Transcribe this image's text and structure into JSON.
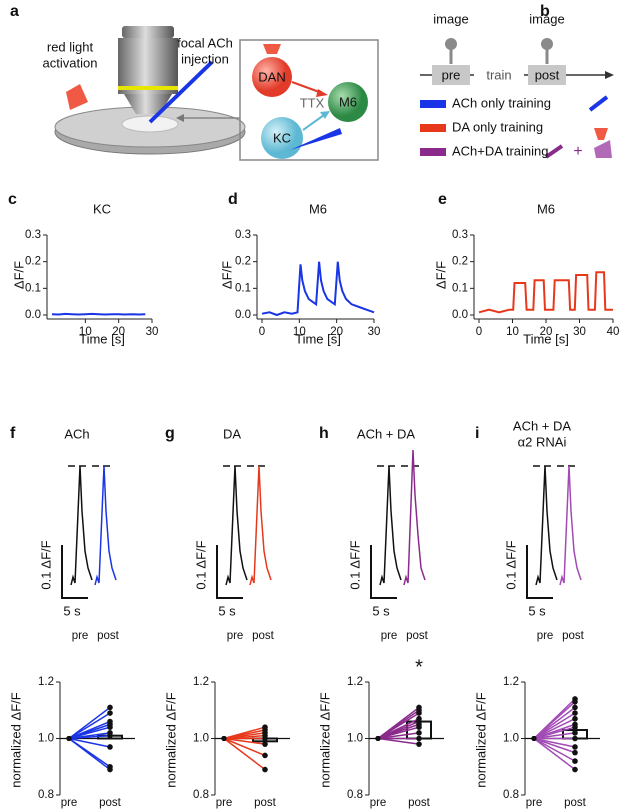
{
  "panel_a": {
    "letter": "a",
    "red_light": [
      "red light",
      "activation"
    ],
    "injection": [
      "focal ACh",
      "injection"
    ],
    "nodes": {
      "dan": "DAN",
      "m6": "M6",
      "kc": "KC"
    },
    "ttx": "TTX"
  },
  "panel_b": {
    "letter": "b",
    "image_labels": [
      "image",
      "image"
    ],
    "timeline": [
      "pre",
      "train",
      "post"
    ],
    "legend": [
      {
        "label": "ACh only training",
        "color": "#1a35e6"
      },
      {
        "label": "DA only training",
        "color": "#e8381c"
      },
      {
        "label": "ACh+DA  training",
        "color": "#8a2b8c"
      }
    ],
    "plus": "+"
  },
  "chart_data": [
    {
      "type": "line",
      "letter": "c",
      "title": "KC",
      "x_label": "Time [s]",
      "y_label": "ΔF/F",
      "x": [
        0,
        2,
        4,
        6,
        8,
        10,
        12,
        14,
        16,
        18,
        20,
        22,
        24,
        26,
        28
      ],
      "series": [
        {
          "color": "#1a35e6",
          "values": [
            0.003,
            0.002,
            0.004,
            0.003,
            0.002,
            0.003,
            0.004,
            0.003,
            0.002,
            0.003,
            0.003,
            0.002,
            0.003,
            0.002,
            0.003
          ]
        }
      ],
      "xlim": [
        0,
        30
      ],
      "ylim": [
        0,
        0.3
      ],
      "xticks": [
        10,
        20,
        30
      ],
      "yticks": [
        {
          "value": 0,
          "label": "0.0"
        },
        {
          "value": 0.1,
          "label": "0.1"
        },
        {
          "value": 0.2,
          "label": "0.2"
        },
        {
          "value": 0.3,
          "label": "0.3"
        }
      ]
    },
    {
      "type": "line",
      "letter": "d",
      "title": "M6",
      "x_label": "Time [s]",
      "y_label": "ΔF/F",
      "x": [
        0,
        2,
        4,
        6,
        8,
        9.5,
        10.3,
        10.8,
        11.5,
        12.5,
        13.5,
        14.5,
        15.3,
        15.8,
        16.5,
        17.5,
        18.5,
        19.5,
        20.3,
        20.8,
        21.5,
        22.5,
        24,
        26,
        28,
        30
      ],
      "series": [
        {
          "color": "#1a35e6",
          "values": [
            0.005,
            0.01,
            0.0,
            0.01,
            0.005,
            0.01,
            0.19,
            0.13,
            0.09,
            0.06,
            0.05,
            0.04,
            0.2,
            0.13,
            0.09,
            0.06,
            0.05,
            0.04,
            0.2,
            0.13,
            0.09,
            0.06,
            0.04,
            0.03,
            0.02,
            0.01
          ]
        }
      ],
      "xlim": [
        0,
        30
      ],
      "ylim": [
        0,
        0.3
      ],
      "xticks": [
        0,
        10,
        20,
        30
      ],
      "yticks": [
        {
          "value": 0,
          "label": "0.0"
        },
        {
          "value": 0.1,
          "label": "0.1"
        },
        {
          "value": 0.2,
          "label": "0.2"
        },
        {
          "value": 0.3,
          "label": "0.3"
        }
      ]
    },
    {
      "type": "line",
      "letter": "e",
      "title": "M6",
      "x_label": "Time [s]",
      "y_label": "ΔF/F",
      "x": [
        0,
        3,
        6,
        9,
        10.2,
        10.6,
        13.8,
        14.2,
        16.2,
        16.6,
        19.3,
        19.7,
        22.2,
        22.6,
        26.8,
        27.2,
        28.6,
        29.0,
        32.3,
        32.7,
        34.6,
        35.0,
        37.3,
        37.7,
        40
      ],
      "series": [
        {
          "color": "#e8381c",
          "values": [
            0.01,
            0.02,
            0.01,
            0.02,
            0.02,
            0.12,
            0.12,
            0.02,
            0.02,
            0.13,
            0.13,
            0.02,
            0.02,
            0.13,
            0.13,
            0.02,
            0.02,
            0.15,
            0.15,
            0.02,
            0.02,
            0.16,
            0.16,
            0.02,
            0.02
          ]
        }
      ],
      "xlim": [
        0,
        40
      ],
      "ylim": [
        0,
        0.3
      ],
      "xticks": [
        0,
        10,
        20,
        30,
        40
      ],
      "yticks": [
        {
          "value": 0,
          "label": "0.0"
        },
        {
          "value": 0.1,
          "label": "0.1"
        },
        {
          "value": 0.2,
          "label": "0.2"
        },
        {
          "value": 0.3,
          "label": "0.3"
        }
      ]
    },
    {
      "type": "paired",
      "letter": "f",
      "title": "ACh",
      "scale_y": "0.1 ΔF/F",
      "scale_x": "5 s",
      "trace_labels": [
        "pre",
        "post"
      ],
      "y_label": "normalized ΔF/F",
      "categories": [
        "pre",
        "post"
      ],
      "color": "#1a35e6",
      "reference": 1.0,
      "pre": [
        1.0,
        1.0,
        1.0,
        1.0,
        1.0,
        1.0,
        1.0,
        1.0,
        1.0,
        1.0
      ],
      "post": [
        1.11,
        1.09,
        1.06,
        1.05,
        1.04,
        1.02,
        1.01,
        0.97,
        0.9,
        0.89
      ],
      "mean": 1.01,
      "ylim": [
        0.8,
        1.2
      ],
      "yticks": [
        {
          "value": 0.8,
          "label": "0.8"
        },
        {
          "value": 1.0,
          "label": "1.0"
        },
        {
          "value": 1.2,
          "label": "1.2"
        }
      ]
    },
    {
      "type": "paired",
      "letter": "g",
      "title": "DA",
      "scale_y": "0.1 ΔF/F",
      "scale_x": "5 s",
      "trace_labels": [
        "pre",
        "post"
      ],
      "y_label": "normalized ΔF/F",
      "categories": [
        "pre",
        "post"
      ],
      "color": "#e8381c",
      "reference": 1.0,
      "pre": [
        1.0,
        1.0,
        1.0,
        1.0,
        1.0,
        1.0,
        1.0,
        1.0
      ],
      "post": [
        1.04,
        1.03,
        1.02,
        1.01,
        1.0,
        0.98,
        0.94,
        0.89
      ],
      "mean": 0.99,
      "ylim": [
        0.8,
        1.2
      ],
      "yticks": [
        {
          "value": 0.8,
          "label": "0.8"
        },
        {
          "value": 1.0,
          "label": "1.0"
        },
        {
          "value": 1.2,
          "label": "1.2"
        }
      ]
    },
    {
      "type": "paired",
      "letter": "h",
      "title": "ACh + DA",
      "scale_y": "0.1 ΔF/F",
      "scale_x": "5 s",
      "trace_labels": [
        "pre",
        "post"
      ],
      "y_label": "normalized ΔF/F",
      "categories": [
        "pre",
        "post"
      ],
      "color": "#8a2b8c",
      "reference": 1.0,
      "pre": [
        1.0,
        1.0,
        1.0,
        1.0,
        1.0,
        1.0,
        1.0,
        1.0,
        1.0,
        1.0
      ],
      "post": [
        1.11,
        1.1,
        1.09,
        1.07,
        1.06,
        1.05,
        1.04,
        1.02,
        1.0,
        0.98
      ],
      "mean": 1.06,
      "annotation": "*",
      "ylim": [
        0.8,
        1.2
      ],
      "yticks": [
        {
          "value": 0.8,
          "label": "0.8"
        },
        {
          "value": 1.0,
          "label": "1.0"
        },
        {
          "value": 1.2,
          "label": "1.2"
        }
      ]
    },
    {
      "type": "paired",
      "letter": "i",
      "title": "ACh + DA",
      "subtitle": "α2 RNAi",
      "scale_y": "0.1 ΔF/F",
      "scale_x": "5 s",
      "trace_labels": [
        "pre",
        "post"
      ],
      "y_label": "normalized ΔF/F",
      "categories": [
        "pre",
        "post"
      ],
      "color": "#a24bb5",
      "reference": 1.0,
      "pre": [
        1.0,
        1.0,
        1.0,
        1.0,
        1.0,
        1.0,
        1.0,
        1.0,
        1.0,
        1.0,
        1.0,
        1.0,
        1.0
      ],
      "post": [
        1.14,
        1.13,
        1.11,
        1.09,
        1.07,
        1.05,
        1.04,
        1.02,
        1.0,
        0.97,
        0.95,
        0.92,
        0.89
      ],
      "mean": 1.03,
      "ylim": [
        0.8,
        1.2
      ],
      "yticks": [
        {
          "value": 0.8,
          "label": "0.8"
        },
        {
          "value": 1.0,
          "label": "1.0"
        },
        {
          "value": 1.2,
          "label": "1.2"
        }
      ]
    }
  ]
}
